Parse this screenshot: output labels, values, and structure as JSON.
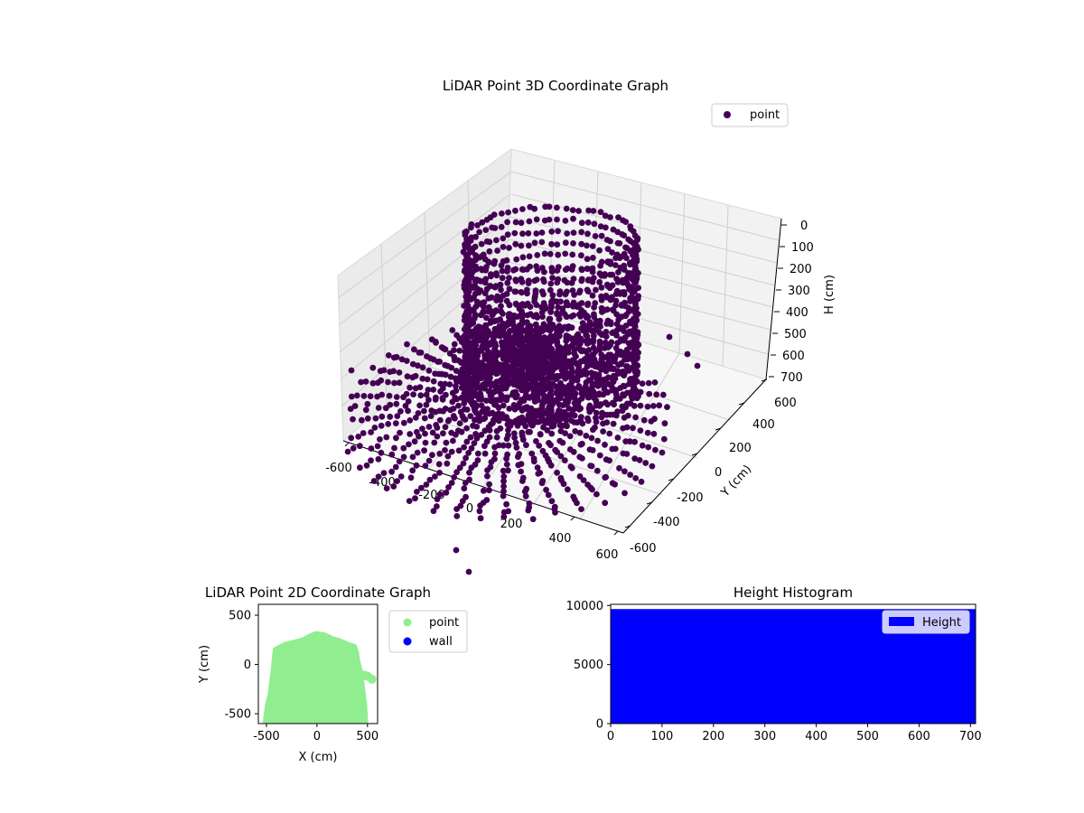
{
  "chart_data": [
    {
      "type": "scatter",
      "title": "LiDAR Point 3D Coordinate Graph",
      "projection": "3d",
      "xlabel": "",
      "ylabel": "Y (cm)",
      "zlabel": "H (cm)",
      "x_ticks": [
        -600,
        -400,
        -200,
        0,
        200,
        400,
        600
      ],
      "y_ticks": [
        -600,
        -400,
        -200,
        0,
        200,
        400,
        600
      ],
      "z_ticks": [
        0,
        100,
        200,
        300,
        400,
        500,
        600,
        700
      ],
      "z_inverted": true,
      "xlim": [
        -600,
        600
      ],
      "ylim": [
        -600,
        600
      ],
      "zlim": [
        0,
        700
      ],
      "legend": {
        "labels": [
          "point"
        ],
        "placement": "top-right"
      },
      "series": [
        {
          "name": "point",
          "color": "#440154",
          "marker": "circle",
          "description_shape": "dense rotating scan rings around origin"
        }
      ],
      "grid": true
    },
    {
      "type": "scatter",
      "title": "LiDAR Point 2D Coordinate Graph",
      "xlabel": "X (cm)",
      "ylabel": "Y (cm)",
      "x_ticks": [
        -500,
        0,
        500
      ],
      "y_ticks": [
        -500,
        0,
        500
      ],
      "xlim": [
        -580,
        600
      ],
      "ylim": [
        -600,
        610
      ],
      "legend": {
        "labels": [
          "point",
          "wall"
        ],
        "placement": "outside-right"
      },
      "series": [
        {
          "name": "point",
          "color": "#90ee90",
          "outline": [
            [
              -510,
              -600
            ],
            [
              -490,
              -420
            ],
            [
              -460,
              -300
            ],
            [
              -430,
              -50
            ],
            [
              -420,
              60
            ],
            [
              -410,
              150
            ],
            [
              -320,
              200
            ],
            [
              -200,
              230
            ],
            [
              -130,
              250
            ],
            [
              -60,
              290
            ],
            [
              -10,
              310
            ],
            [
              30,
              305
            ],
            [
              70,
              300
            ],
            [
              150,
              260
            ],
            [
              220,
              240
            ],
            [
              310,
              200
            ],
            [
              370,
              180
            ],
            [
              390,
              120
            ],
            [
              400,
              40
            ],
            [
              430,
              -80
            ],
            [
              450,
              -250
            ],
            [
              470,
              -420
            ],
            [
              480,
              -600
            ]
          ],
          "extra_points": [
            [
              545,
              -150
            ],
            [
              500,
              -120
            ],
            [
              470,
              -110
            ]
          ]
        },
        {
          "name": "wall",
          "color": "#0000ff",
          "points": []
        }
      ],
      "grid": false
    },
    {
      "type": "bar",
      "title": "Height Histogram",
      "xlabel": "",
      "ylabel": "",
      "x_ticks": [
        0,
        100,
        200,
        300,
        400,
        500,
        600,
        700
      ],
      "y_ticks": [
        0,
        5000,
        10000
      ],
      "xlim": [
        0,
        710
      ],
      "ylim": [
        0,
        10100
      ],
      "legend": {
        "labels": [
          "Height"
        ],
        "placement": "top-right"
      },
      "series": [
        {
          "name": "Height",
          "color": "#0000ff",
          "bins": [
            [
              0,
              710,
              9700
            ]
          ]
        }
      ],
      "grid": false
    }
  ]
}
